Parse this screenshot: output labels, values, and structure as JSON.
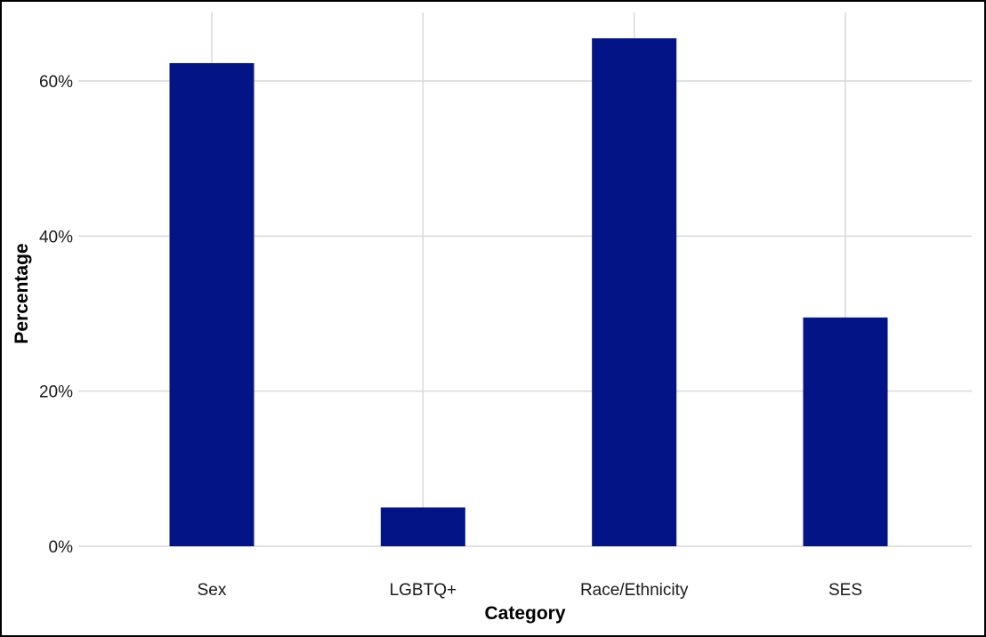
{
  "chart_data": {
    "type": "bar",
    "title": "",
    "xlabel": "Category",
    "ylabel": "Percentage",
    "categories": [
      "Sex",
      "LGBTQ+",
      "Race/Ethnicity",
      "SES"
    ],
    "values": [
      62.3,
      5.0,
      65.5,
      29.5
    ],
    "ylim": [
      0,
      67
    ],
    "yticks": [
      0,
      20,
      40,
      60
    ],
    "ytick_labels": [
      "0%",
      "20%",
      "40%",
      "60%"
    ],
    "grid": true,
    "legend": "none",
    "bar_color": "#031487",
    "grid_color": "#d9d9d9"
  }
}
